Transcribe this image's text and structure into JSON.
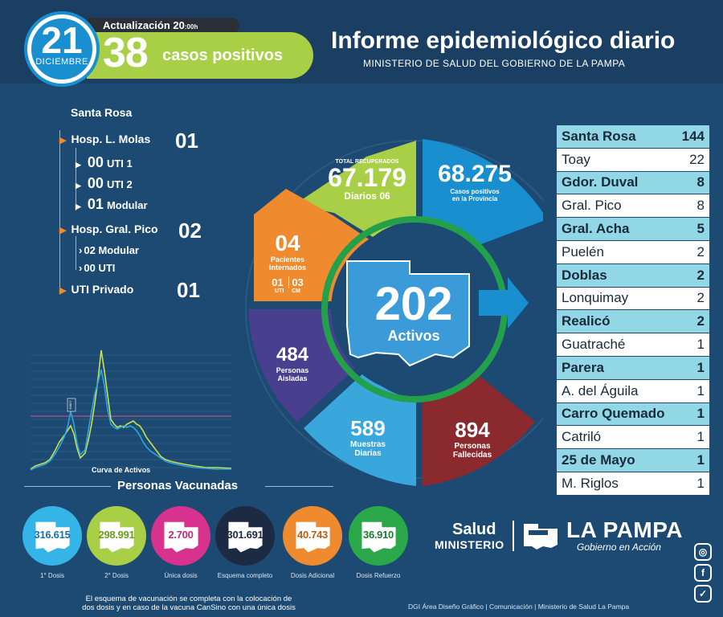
{
  "header": {
    "day": "21",
    "month": "DICIEMBRE",
    "update_label": "Actualización 20",
    "update_time": ":00h",
    "cases_number": "38",
    "cases_label": "casos positivos",
    "title": "Informe epidemiológico diario",
    "subtitle": "MINISTERIO DE SALUD DEL GOBIERNO DE LA PAMPA"
  },
  "hospitals": {
    "city": "Santa Rosa",
    "molas": {
      "label": "Hosp. L. Molas",
      "count": "01",
      "items": [
        {
          "value": "00",
          "label": "UTI 1"
        },
        {
          "value": "00",
          "label": "UTI 2"
        },
        {
          "value": "01",
          "label": "Modular"
        }
      ]
    },
    "pico": {
      "label": "Hosp. Gral. Pico",
      "count": "02",
      "items": [
        {
          "value": "02",
          "label": "Modular"
        },
        {
          "value": "00",
          "label": "UTI"
        }
      ]
    },
    "private": {
      "label": "UTI Privado",
      "count": "01"
    }
  },
  "chart": {
    "caption": "Curva de Activos",
    "peak_label": "60827",
    "colors": {
      "green": "#c8e04b",
      "blue": "#2aa6e0",
      "pink": "#e0528f"
    }
  },
  "stats": {
    "recovered_label": "TOTAL RECUPERADOS",
    "recovered": "67.179",
    "daily_label": "Diarios",
    "daily": "06",
    "positives": "68.275",
    "positives_label_1": "Casos positivos",
    "positives_label_2": "en la Provincia",
    "hospitalized": "04",
    "hospitalized_label_1": "Pacientes",
    "hospitalized_label_2": "Internados",
    "uti_value": "01",
    "uti_label": "UTI",
    "cm_value": "03",
    "cm_label": "CM",
    "active": "202",
    "active_label": "Activos",
    "isolated": "484",
    "isolated_label_1": "Personas",
    "isolated_label_2": "Aisladas",
    "samples": "589",
    "samples_label_1": "Muestras",
    "samples_label_2": "Diarias",
    "deceased": "894",
    "deceased_label_1": "Personas",
    "deceased_label_2": "Fallecidas",
    "colors": {
      "recovered": "#a8cf45",
      "positives": "#1a8fd0",
      "hospitalized": "#f08a2e",
      "isolated": "#4a3e8f",
      "samples": "#3aa7dc",
      "deceased": "#8a2a2e"
    }
  },
  "localities": [
    {
      "name": "Santa Rosa",
      "count": "144",
      "highlight": true
    },
    {
      "name": "Toay",
      "count": "22",
      "highlight": false
    },
    {
      "name": "Gdor. Duval",
      "count": "8",
      "highlight": true
    },
    {
      "name": "Gral. Pico",
      "count": "8",
      "highlight": false
    },
    {
      "name": "Gral. Acha",
      "count": "5",
      "highlight": true
    },
    {
      "name": "Puelén",
      "count": "2",
      "highlight": false
    },
    {
      "name": "Doblas",
      "count": "2",
      "highlight": true
    },
    {
      "name": "Lonquimay",
      "count": "2",
      "highlight": false
    },
    {
      "name": "Realicó",
      "count": "2",
      "highlight": true
    },
    {
      "name": "Guatraché",
      "count": "1",
      "highlight": false
    },
    {
      "name": "Parera",
      "count": "1",
      "highlight": true
    },
    {
      "name": "A. del Águila",
      "count": "1",
      "highlight": false
    },
    {
      "name": "Carro Quemado",
      "count": "1",
      "highlight": true
    },
    {
      "name": "Catriló",
      "count": "1",
      "highlight": false
    },
    {
      "name": "25 de Mayo",
      "count": "1",
      "highlight": true
    },
    {
      "name": "M. Riglos",
      "count": "1",
      "highlight": false
    }
  ],
  "vaccines": {
    "title": "Personas Vacunadas",
    "items": [
      {
        "value": "316.615",
        "label": "1° Dosis",
        "color": "#35b4e8",
        "text_color": "#1a6fb0"
      },
      {
        "value": "298.991",
        "label": "2° Dosis",
        "color": "#a8cf45",
        "text_color": "#6f9a1e"
      },
      {
        "value": "2.700",
        "label": "Única dosis",
        "color": "#d8328f",
        "text_color": "#c2287e"
      },
      {
        "value": "301.691",
        "label": "Esquema completo",
        "color": "#1c2a44",
        "text_color": "#1c2a44"
      },
      {
        "value": "40.743",
        "label": "Dosis Adicional",
        "color": "#f08a2e",
        "text_color": "#b85f12"
      },
      {
        "value": "36.910",
        "label": "Dosis Refuerzo",
        "color": "#2aa84a",
        "text_color": "#1c7a32"
      }
    ],
    "note": "El esquema de vacunación se completa con la colocación de dos dosis y en caso de la vacuna CanSino con una única dosis"
  },
  "footer": {
    "salud": "Salud",
    "ministerio": "MINISTERIO",
    "lapampa": "LA PAMPA",
    "gobierno": "Gobierno en Acción",
    "credits": "DGI Área Diseño Gráfico  | Comunicación  | Ministerio de Salud La Pampa",
    "social": [
      {
        "name": "instagram-icon",
        "glyph": "◎"
      },
      {
        "name": "facebook-icon",
        "glyph": "f"
      },
      {
        "name": "twitter-icon",
        "glyph": "✓"
      }
    ]
  }
}
